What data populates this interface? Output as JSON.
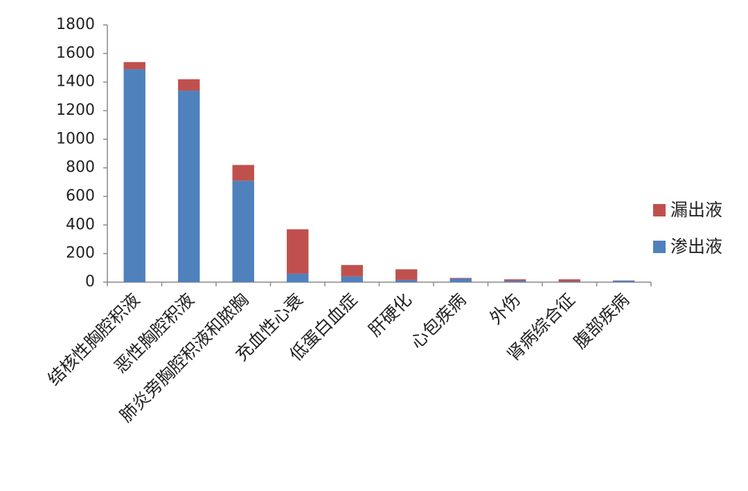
{
  "chart_data": {
    "type": "stacked_bar",
    "categories": [
      "结核性胸腔积液",
      "恶性胸腔积液",
      "肺炎旁胸腔积液和脓胸",
      "充血性心衰",
      "低蛋白血症",
      "肝硬化",
      "心包疾病",
      "外伤",
      "肾病综合征",
      "腹部疾病"
    ],
    "series": [
      {
        "name": "渗出液",
        "color": "#4f81bd",
        "values": [
          1490,
          1340,
          710,
          60,
          40,
          15,
          25,
          10,
          5,
          10
        ]
      },
      {
        "name": "漏出液",
        "color": "#c0504d",
        "values": [
          50,
          80,
          110,
          310,
          80,
          75,
          5,
          10,
          15,
          2
        ]
      }
    ],
    "ylim": [
      0,
      1800
    ],
    "yticks": [
      0,
      200,
      400,
      600,
      800,
      1000,
      1200,
      1400,
      1600,
      1800
    ],
    "grid": false,
    "legend": "right"
  }
}
